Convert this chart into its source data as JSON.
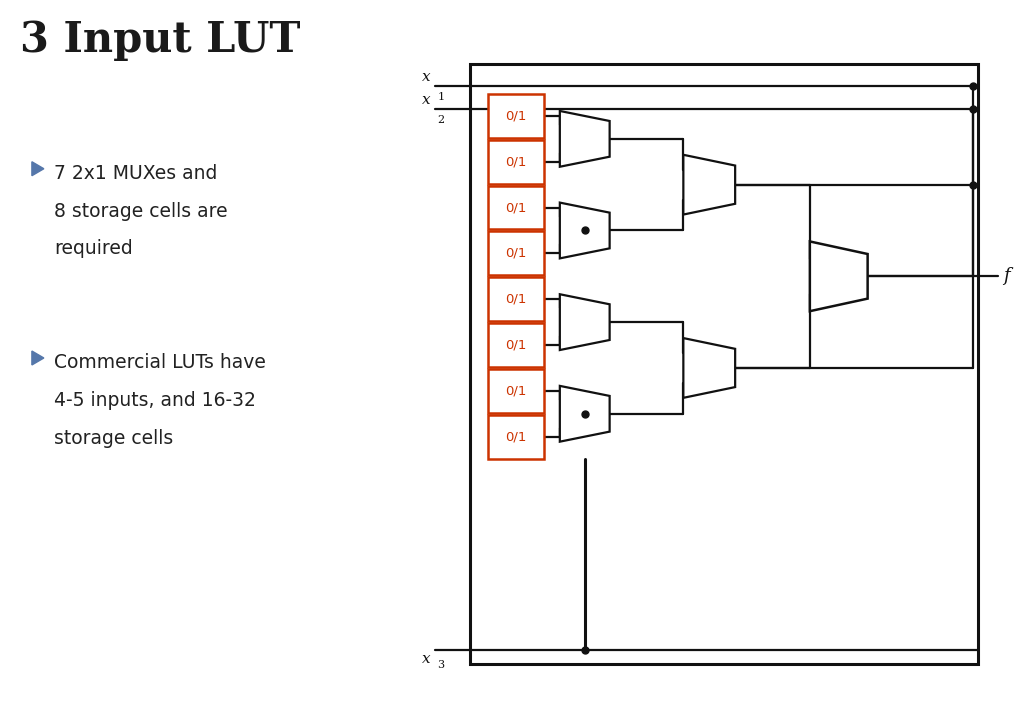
{
  "title": "3 Input LUT",
  "bullet1_line1": "7 2x1 MUXes and",
  "bullet1_line2": "8 storage cells are",
  "bullet1_line3": "required",
  "bullet2_line1": "Commercial LUTs have",
  "bullet2_line2": "4-5 inputs, and 16-32",
  "bullet2_line3": "storage cells",
  "background_color": "#ffffff",
  "bullet_color": "#5577aa",
  "title_color": "#1a1a1a",
  "body_color": "#222222",
  "cell_border_color": "#cc3300",
  "cell_text_color": "#cc3300",
  "wire_color": "#111111",
  "box_color": "#111111",
  "label_x1": "x",
  "label_x1_sub": "1",
  "label_x2": "x",
  "label_x2_sub": "2",
  "label_x3": "x",
  "label_x3_sub": "3",
  "label_f": "f",
  "n_cells": 8,
  "cell_labels": [
    "0/1",
    "0/1",
    "0/1",
    "0/1",
    "0/1",
    "0/1",
    "0/1",
    "0/1"
  ]
}
